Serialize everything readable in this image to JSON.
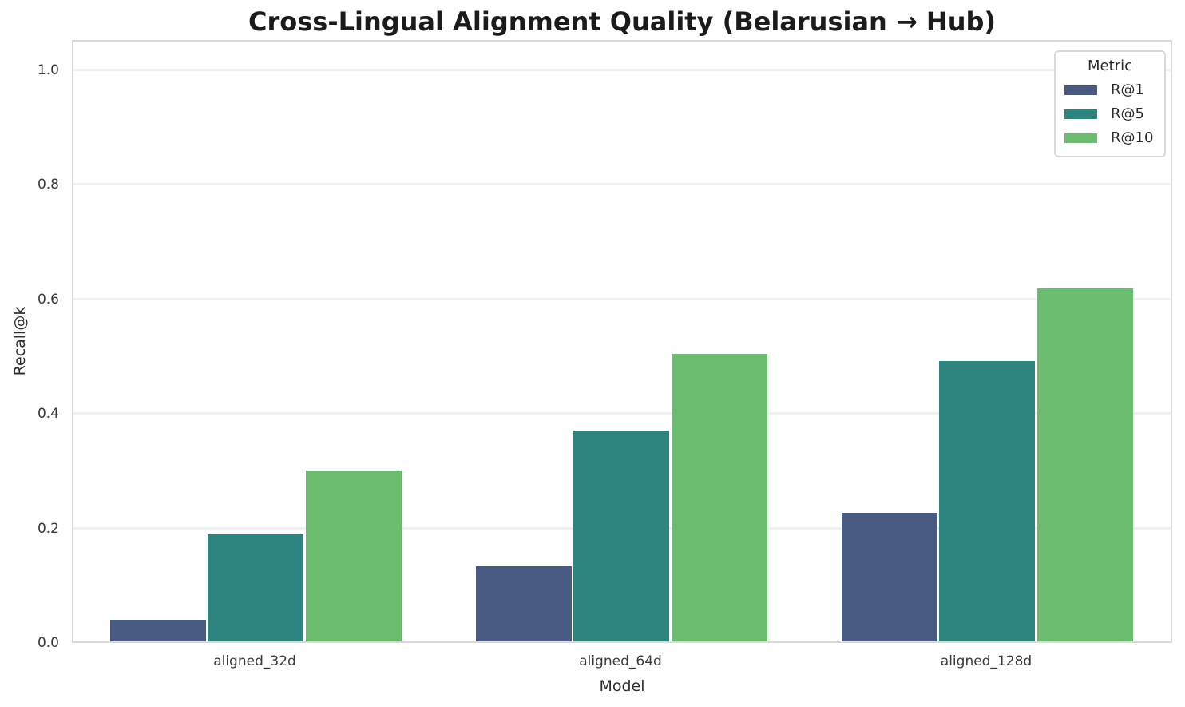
{
  "chart_data": {
    "type": "bar",
    "title": "Cross-Lingual Alignment Quality (Belarusian → Hub)",
    "xlabel": "Model",
    "ylabel": "Recall@k",
    "categories": [
      "aligned_32d",
      "aligned_64d",
      "aligned_128d"
    ],
    "series": [
      {
        "name": "R@1",
        "color": "#485a82",
        "values": [
          0.04,
          0.134,
          0.228
        ]
      },
      {
        "name": "R@5",
        "color": "#2e847f",
        "values": [
          0.19,
          0.371,
          0.493
        ]
      },
      {
        "name": "R@10",
        "color": "#6bbc6e",
        "values": [
          0.301,
          0.505,
          0.619
        ]
      }
    ],
    "legend": {
      "title": "Metric",
      "entries": [
        "R@1",
        "R@5",
        "R@10"
      ],
      "position": "upper-right"
    },
    "yticks": [
      "0.0",
      "0.2",
      "0.4",
      "0.6",
      "0.8",
      "1.0"
    ],
    "ylim": [
      0.0,
      1.05
    ],
    "grid": "horizontal",
    "style": {
      "grid_color": "#f0f0f0",
      "spine_color": "#d8d8d8",
      "title_color": "#1b1b1b",
      "tick_color": "#3a3a3a",
      "background": "#ffffff"
    }
  }
}
